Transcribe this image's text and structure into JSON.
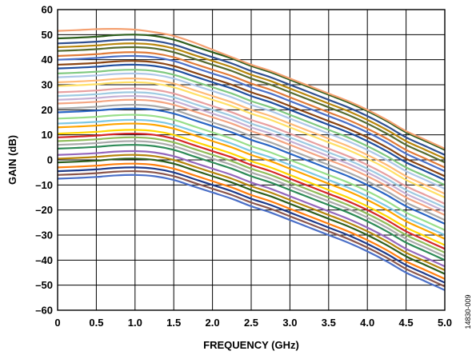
{
  "chart_data": {
    "type": "line",
    "xlabel": "FREQUENCY (GHz)",
    "ylabel": "GAIN (dB)",
    "xlim": [
      0,
      5
    ],
    "ylim": [
      -60,
      60
    ],
    "grid": true,
    "legend": "none",
    "x_ticks": [
      "0",
      "0.5",
      "1.0",
      "1.5",
      "2.0",
      "2.5",
      "3.0",
      "3.5",
      "4.0",
      "4.5",
      "5.0"
    ],
    "y_ticks": [
      "60",
      "50",
      "40",
      "30",
      "20",
      "10",
      "0",
      "–10",
      "–20",
      "–30",
      "–40",
      "–50",
      "–60"
    ],
    "figure_id": "14830-009",
    "x": [
      0,
      0.25,
      0.5,
      0.75,
      1.0,
      1.25,
      1.5,
      1.75,
      2.0,
      2.25,
      2.5,
      2.75,
      3.0,
      3.25,
      3.5,
      3.75,
      4.0,
      4.25,
      4.5,
      4.75,
      5.0
    ],
    "series": [
      {
        "color": "#4a6fc7",
        "values": [
          -7.5,
          -7.2,
          -6.8,
          -6.2,
          -6.0,
          -6.5,
          -8.0,
          -10.5,
          -13.0,
          -15.5,
          -18.5,
          -21.0,
          -24.0,
          -27.0,
          -30.0,
          -33.0,
          -36.5,
          -40.5,
          -45.0,
          -48.5,
          -52.0
        ]
      },
      {
        "color": "#8c564b",
        "values": [
          -6.0,
          -5.7,
          -5.3,
          -4.7,
          -4.5,
          -5.0,
          -6.5,
          -9.0,
          -11.5,
          -14.0,
          -17.0,
          -19.5,
          -22.5,
          -25.5,
          -28.5,
          -31.5,
          -35.0,
          -39.0,
          -43.5,
          -47.0,
          -50.5
        ]
      },
      {
        "color": "#1f3b8a",
        "values": [
          -4.5,
          -4.2,
          -3.8,
          -3.2,
          -3.0,
          -3.5,
          -5.0,
          -7.5,
          -10.0,
          -12.5,
          -15.5,
          -18.0,
          -21.0,
          -24.0,
          -27.0,
          -30.0,
          -33.5,
          -37.5,
          -42.0,
          -45.5,
          -49.0
        ]
      },
      {
        "color": "#ff7f0e",
        "values": [
          -3.0,
          -2.7,
          -2.3,
          -1.7,
          -1.5,
          -2.0,
          -3.5,
          -6.0,
          -8.5,
          -11.0,
          -14.0,
          -16.5,
          -19.5,
          -22.5,
          -25.5,
          -28.5,
          -32.0,
          -36.0,
          -40.5,
          -44.0,
          -47.5
        ]
      },
      {
        "color": "#2e5f1e",
        "values": [
          -1.0,
          -0.7,
          -0.3,
          0.3,
          0.5,
          0.0,
          -1.5,
          -4.0,
          -6.5,
          -9.0,
          -12.0,
          -14.5,
          -17.5,
          -20.5,
          -23.5,
          -26.5,
          -30.0,
          -34.0,
          -38.5,
          -42.0,
          -45.5
        ]
      },
      {
        "color": "#b8860b",
        "values": [
          0.5,
          0.8,
          1.2,
          1.8,
          2.0,
          1.5,
          0.0,
          -2.5,
          -5.0,
          -7.5,
          -10.5,
          -13.0,
          -16.0,
          -19.0,
          -22.0,
          -25.0,
          -28.5,
          -32.5,
          -37.0,
          -40.5,
          -44.0
        ]
      },
      {
        "color": "#9467bd",
        "values": [
          2.0,
          2.3,
          2.7,
          3.3,
          3.5,
          3.0,
          1.5,
          -1.0,
          -3.5,
          -6.0,
          -9.0,
          -11.5,
          -14.5,
          -17.5,
          -20.5,
          -23.5,
          -27.0,
          -31.0,
          -35.5,
          -39.0,
          -42.5
        ]
      },
      {
        "color": "#2e8b57",
        "values": [
          4.5,
          4.8,
          5.2,
          5.8,
          6.0,
          5.5,
          4.0,
          1.5,
          -1.0,
          -3.5,
          -6.5,
          -9.0,
          -12.0,
          -15.0,
          -18.0,
          -21.0,
          -24.5,
          -28.5,
          -33.0,
          -36.5,
          -40.0
        ]
      },
      {
        "color": "#aaaaaa",
        "values": [
          6.0,
          6.3,
          6.7,
          7.3,
          7.5,
          7.0,
          5.5,
          3.0,
          0.5,
          -2.0,
          -5.0,
          -7.5,
          -10.5,
          -13.5,
          -16.5,
          -19.5,
          -23.0,
          -27.0,
          -31.5,
          -35.0,
          -38.5
        ]
      },
      {
        "color": "#8fbc5a",
        "values": [
          7.5,
          7.8,
          8.2,
          8.8,
          9.0,
          8.5,
          7.0,
          4.5,
          2.0,
          -0.5,
          -3.5,
          -6.0,
          -9.0,
          -12.0,
          -15.0,
          -18.0,
          -21.5,
          -25.5,
          -30.0,
          -33.5,
          -37.0
        ]
      },
      {
        "color": "#d62728",
        "values": [
          9.0,
          9.3,
          9.7,
          10.3,
          10.5,
          10.0,
          8.5,
          6.0,
          3.5,
          1.0,
          -2.0,
          -4.5,
          -7.5,
          -10.5,
          -13.5,
          -16.5,
          -20.0,
          -24.0,
          -28.5,
          -32.0,
          -35.5
        ]
      },
      {
        "color": "#ffd700",
        "values": [
          10.5,
          10.8,
          11.2,
          11.8,
          12.0,
          11.5,
          10.0,
          7.5,
          5.0,
          2.5,
          -0.5,
          -3.0,
          -6.0,
          -9.0,
          -12.0,
          -15.0,
          -18.5,
          -22.5,
          -27.0,
          -30.5,
          -34.0
        ]
      },
      {
        "color": "#ffa500",
        "values": [
          13.0,
          13.3,
          13.7,
          14.3,
          14.5,
          14.0,
          12.5,
          10.0,
          7.5,
          5.0,
          2.0,
          -0.5,
          -3.5,
          -6.5,
          -9.5,
          -12.5,
          -16.0,
          -20.0,
          -24.5,
          -28.0,
          -31.5
        ]
      },
      {
        "color": "#7ec8e3",
        "values": [
          14.5,
          14.8,
          15.2,
          15.8,
          16.0,
          15.5,
          14.0,
          11.5,
          9.0,
          6.5,
          3.5,
          1.0,
          -2.0,
          -5.0,
          -8.0,
          -11.0,
          -14.5,
          -18.5,
          -23.0,
          -26.5,
          -30.0
        ]
      },
      {
        "color": "#98df8a",
        "values": [
          16.5,
          16.8,
          17.2,
          17.8,
          18.0,
          17.5,
          16.0,
          13.5,
          11.0,
          8.5,
          5.5,
          3.0,
          0.0,
          -3.0,
          -6.0,
          -9.0,
          -12.5,
          -16.5,
          -21.0,
          -24.5,
          -28.0
        ]
      },
      {
        "color": "#2a66c4",
        "values": [
          19.0,
          19.3,
          19.7,
          20.3,
          20.5,
          20.0,
          18.5,
          16.0,
          13.5,
          11.0,
          8.0,
          5.5,
          2.5,
          -0.5,
          -3.5,
          -6.5,
          -10.0,
          -14.0,
          -18.5,
          -22.0,
          -25.5
        ]
      },
      {
        "color": "#a9a9a9",
        "values": [
          20.5,
          20.8,
          21.2,
          21.8,
          22.0,
          21.5,
          20.0,
          17.5,
          15.0,
          12.5,
          9.5,
          7.0,
          4.0,
          1.0,
          -2.0,
          -5.0,
          -8.5,
          -12.5,
          -17.0,
          -20.5,
          -24.0
        ]
      },
      {
        "color": "#f4a582",
        "values": [
          22.5,
          22.8,
          23.2,
          23.8,
          24.0,
          23.5,
          22.0,
          19.5,
          17.0,
          14.5,
          11.5,
          9.0,
          6.0,
          3.0,
          0.0,
          -3.0,
          -6.5,
          -10.5,
          -15.0,
          -18.5,
          -22.0
        ]
      },
      {
        "color": "#c5b0d5",
        "values": [
          24.0,
          24.3,
          24.7,
          25.3,
          25.5,
          25.0,
          23.5,
          21.0,
          18.5,
          16.0,
          13.0,
          10.5,
          7.5,
          4.5,
          1.5,
          -1.5,
          -5.0,
          -9.0,
          -13.5,
          -17.0,
          -20.5
        ]
      },
      {
        "color": "#9ecae1",
        "values": [
          25.5,
          25.8,
          26.2,
          26.8,
          27.0,
          26.5,
          25.0,
          22.5,
          20.0,
          17.5,
          14.5,
          12.0,
          9.0,
          6.0,
          3.0,
          0.0,
          -3.5,
          -7.5,
          -12.0,
          -15.5,
          -19.0
        ]
      },
      {
        "color": "#e8a0a0",
        "values": [
          27.0,
          27.3,
          27.7,
          28.3,
          28.5,
          28.0,
          26.5,
          24.0,
          21.5,
          19.0,
          16.0,
          13.5,
          10.5,
          7.5,
          4.5,
          1.5,
          -2.0,
          -6.0,
          -10.5,
          -14.0,
          -17.5
        ]
      },
      {
        "color": "#ffe066",
        "values": [
          29.5,
          29.8,
          30.2,
          30.8,
          31.0,
          30.5,
          29.0,
          26.5,
          24.0,
          21.5,
          18.5,
          16.0,
          13.0,
          10.0,
          7.0,
          4.0,
          0.5,
          -3.5,
          -8.0,
          -11.5,
          -15.0
        ]
      },
      {
        "color": "#ffbb78",
        "values": [
          31.0,
          31.3,
          31.7,
          32.3,
          32.5,
          32.0,
          30.5,
          28.0,
          25.5,
          23.0,
          20.0,
          17.5,
          14.5,
          11.5,
          8.5,
          5.5,
          2.0,
          -2.0,
          -6.5,
          -10.0,
          -13.5
        ]
      },
      {
        "color": "#aec7e8",
        "values": [
          33.0,
          33.3,
          33.7,
          34.3,
          34.5,
          34.0,
          32.5,
          30.0,
          27.5,
          25.0,
          22.0,
          19.5,
          16.5,
          13.5,
          10.5,
          7.5,
          4.0,
          0.0,
          -4.5,
          -8.0,
          -11.5
        ]
      },
      {
        "color": "#7fc97f",
        "values": [
          34.5,
          34.8,
          35.2,
          35.8,
          36.0,
          35.5,
          34.0,
          31.5,
          29.0,
          26.5,
          23.5,
          21.0,
          18.0,
          15.0,
          12.0,
          9.0,
          5.5,
          1.5,
          -3.0,
          -6.5,
          -10.0
        ]
      },
      {
        "color": "#1f4e9e",
        "values": [
          36.5,
          36.8,
          37.2,
          37.8,
          38.0,
          37.5,
          36.0,
          33.5,
          31.0,
          28.5,
          25.5,
          23.0,
          20.0,
          17.0,
          14.0,
          11.0,
          7.5,
          3.5,
          -1.0,
          -4.5,
          -8.0
        ]
      },
      {
        "color": "#8b4513",
        "values": [
          38.0,
          38.3,
          38.7,
          39.3,
          39.5,
          39.0,
          37.5,
          35.0,
          32.5,
          30.0,
          27.0,
          24.5,
          21.5,
          18.5,
          15.5,
          12.5,
          9.0,
          5.0,
          0.5,
          -3.0,
          -6.5
        ]
      },
      {
        "color": "#4a6fc7",
        "values": [
          40.0,
          40.3,
          40.7,
          41.3,
          41.5,
          41.0,
          39.5,
          37.0,
          34.5,
          32.0,
          29.0,
          26.5,
          23.5,
          20.5,
          17.5,
          14.5,
          11.0,
          7.0,
          2.5,
          -1.0,
          -4.5
        ]
      },
      {
        "color": "#e07b39",
        "values": [
          41.5,
          41.8,
          42.2,
          42.8,
          43.0,
          42.5,
          41.0,
          38.5,
          36.0,
          33.5,
          30.5,
          28.0,
          25.0,
          22.0,
          19.0,
          16.0,
          12.5,
          8.5,
          4.0,
          0.5,
          -3.0
        ]
      },
      {
        "color": "#556b2f",
        "values": [
          43.5,
          43.8,
          44.2,
          44.8,
          45.0,
          44.5,
          43.0,
          40.5,
          38.0,
          35.5,
          32.5,
          30.0,
          27.0,
          24.0,
          21.0,
          18.0,
          14.5,
          10.5,
          6.0,
          2.5,
          -1.0
        ]
      },
      {
        "color": "#b8860b",
        "values": [
          45.0,
          45.3,
          45.7,
          46.3,
          46.5,
          46.0,
          44.5,
          42.0,
          39.5,
          37.0,
          34.0,
          31.5,
          28.5,
          25.5,
          22.5,
          19.5,
          16.0,
          12.0,
          7.5,
          4.0,
          0.5
        ]
      },
      {
        "color": "#2f4f8f",
        "values": [
          46.5,
          46.8,
          47.2,
          47.8,
          48.0,
          47.5,
          46.0,
          43.5,
          41.0,
          38.5,
          35.5,
          33.0,
          30.0,
          27.0,
          24.0,
          21.0,
          17.5,
          13.5,
          9.0,
          5.5,
          2.0
        ]
      },
      {
        "color": "#2e5f1e",
        "values": [
          48.5,
          48.8,
          49.2,
          49.8,
          50.0,
          49.5,
          48.0,
          45.5,
          43.0,
          40.5,
          37.5,
          35.0,
          32.0,
          29.0,
          26.0,
          23.0,
          19.5,
          15.5,
          11.0,
          7.5,
          4.0
        ]
      },
      {
        "color": "#f4a070",
        "values": [
          51.5,
          51.8,
          52.2,
          52.3,
          52.0,
          51.0,
          49.5,
          47.0,
          44.0,
          41.0,
          38.0,
          35.5,
          32.5,
          29.5,
          26.5,
          23.5,
          20.0,
          16.0,
          11.5,
          8.0,
          4.5
        ]
      }
    ]
  }
}
